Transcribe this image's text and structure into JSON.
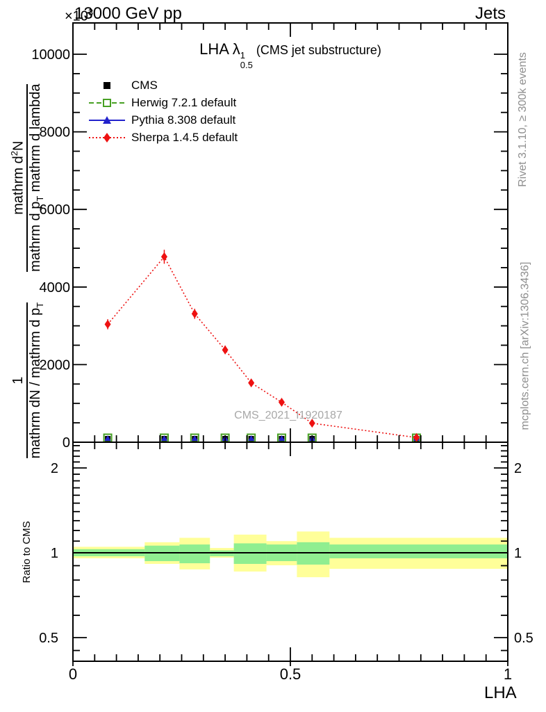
{
  "header": {
    "multiplier_base": "×10",
    "multiplier_exp": "3",
    "beam": "13000 GeV pp",
    "topic": "Jets"
  },
  "title": {
    "main": "LHA λ",
    "sup": "1",
    "sub": "0.5",
    "suffix": " (CMS jet substructure)"
  },
  "ylabel": {
    "frac1": {
      "num": "1",
      "den": "mathrm dN / mathrm d p",
      "den_sub": "T"
    },
    "frac2": {
      "num_a": "mathrm d",
      "num_sup": "2",
      "num_b": "N",
      "den_a": "mathrm d p",
      "den_a_sub": "T",
      "den_b": " mathrm d lambda"
    }
  },
  "side_notes": {
    "rivet": "Rivet 3.1.10, ≥ 300k events",
    "mcplots": "mcplots.cern.ch [arXiv:1306.3436]"
  },
  "watermark": "CMS_2021_I1920187",
  "ratio_ylabel": "Ratio to CMS",
  "xlabel": "LHA",
  "legend": {
    "items": [
      {
        "label": "CMS",
        "marker": "square-filled",
        "line": "none",
        "color": "#000000"
      },
      {
        "label": "Herwig 7.2.1 default",
        "marker": "square-open",
        "line": "dashed",
        "color": "#47a023"
      },
      {
        "label": "Pythia 8.308 default",
        "marker": "triangle-filled",
        "line": "solid",
        "color": "#2222cc"
      },
      {
        "label": "Sherpa 1.4.5 default",
        "marker": "diamond-filled",
        "line": "dotted",
        "color": "#ee1111"
      }
    ]
  },
  "colors": {
    "frame": "#000000",
    "band_yellow": "#ffff99",
    "band_green": "#90ee90",
    "gray_text": "#8e8e8e"
  },
  "chart_data": [
    {
      "type": "line",
      "panel": "main",
      "title": "LHA lambda^1_0.5 (CMS jet substructure)",
      "xlim": [
        0,
        1
      ],
      "ylim": [
        0,
        10000
      ],
      "y_multiplier": "×10^3",
      "grid": false,
      "legend_position": "upper-left",
      "yticks": {
        "values": [
          0,
          2000,
          4000,
          6000,
          8000,
          10000
        ],
        "labels": [
          "0",
          "2000",
          "4000",
          "6000",
          "8000",
          "10000"
        ]
      },
      "yminor_step": 500,
      "xticks": {
        "values": [
          0,
          0.5,
          1
        ],
        "labels": [
          "0",
          "0.5",
          "1"
        ]
      },
      "xminor_step": 0.05,
      "bin_centers": [
        0.08,
        0.21,
        0.28,
        0.35,
        0.41,
        0.48,
        0.55,
        0.79
      ],
      "series": [
        {
          "name": "CMS",
          "color": "#000000",
          "marker": "square-filled",
          "line": "none",
          "values": [
            0,
            0,
            0,
            0,
            0,
            0,
            0,
            0
          ]
        },
        {
          "name": "Herwig 7.2.1 default",
          "color": "#47a023",
          "marker": "square-open",
          "line": "dashed",
          "values": [
            0,
            0,
            0,
            0,
            0,
            0,
            0,
            0
          ]
        },
        {
          "name": "Pythia 8.308 default",
          "color": "#2222cc",
          "marker": "triangle-filled",
          "line": "solid",
          "values": [
            0,
            0,
            0,
            0,
            0,
            0,
            0,
            0
          ]
        },
        {
          "name": "Sherpa 1.4.5 default",
          "color": "#ee1111",
          "marker": "diamond-filled",
          "line": "dotted",
          "values": [
            3040,
            4780,
            3310,
            2380,
            1530,
            1030,
            490,
            120
          ],
          "yerr": [
            130,
            180,
            130,
            110,
            90,
            80,
            60,
            30
          ]
        }
      ]
    },
    {
      "type": "band",
      "panel": "ratio",
      "ylabel": "Ratio to CMS",
      "yscale": "log",
      "ylim": [
        0.41,
        2.47
      ],
      "yticks": {
        "values": [
          0.5,
          1,
          2
        ],
        "labels": [
          "0.5",
          "1",
          "2"
        ]
      },
      "yminor": [
        0.45,
        0.6,
        0.7,
        0.8,
        0.9,
        1.1,
        1.2,
        1.3,
        1.4,
        1.5,
        1.6,
        1.7,
        1.8,
        1.9,
        2.1,
        2.2,
        2.3,
        2.4
      ],
      "reference_line": 1,
      "bin_edges": [
        0,
        0.165,
        0.245,
        0.315,
        0.37,
        0.445,
        0.515,
        0.59,
        1.0
      ],
      "yellow_band": {
        "color": "#ffff99",
        "hi": [
          1.05,
          1.09,
          1.13,
          1.04,
          1.16,
          1.1,
          1.19,
          1.13
        ],
        "lo": [
          0.956,
          0.913,
          0.873,
          0.961,
          0.858,
          0.903,
          0.819,
          0.877
        ]
      },
      "green_band": {
        "color": "#90ee90",
        "hi": [
          1.03,
          1.06,
          1.07,
          1.02,
          1.08,
          1.07,
          1.09,
          1.07
        ],
        "lo": [
          0.972,
          0.934,
          0.918,
          0.972,
          0.913,
          0.934,
          0.908,
          0.956
        ]
      }
    }
  ]
}
